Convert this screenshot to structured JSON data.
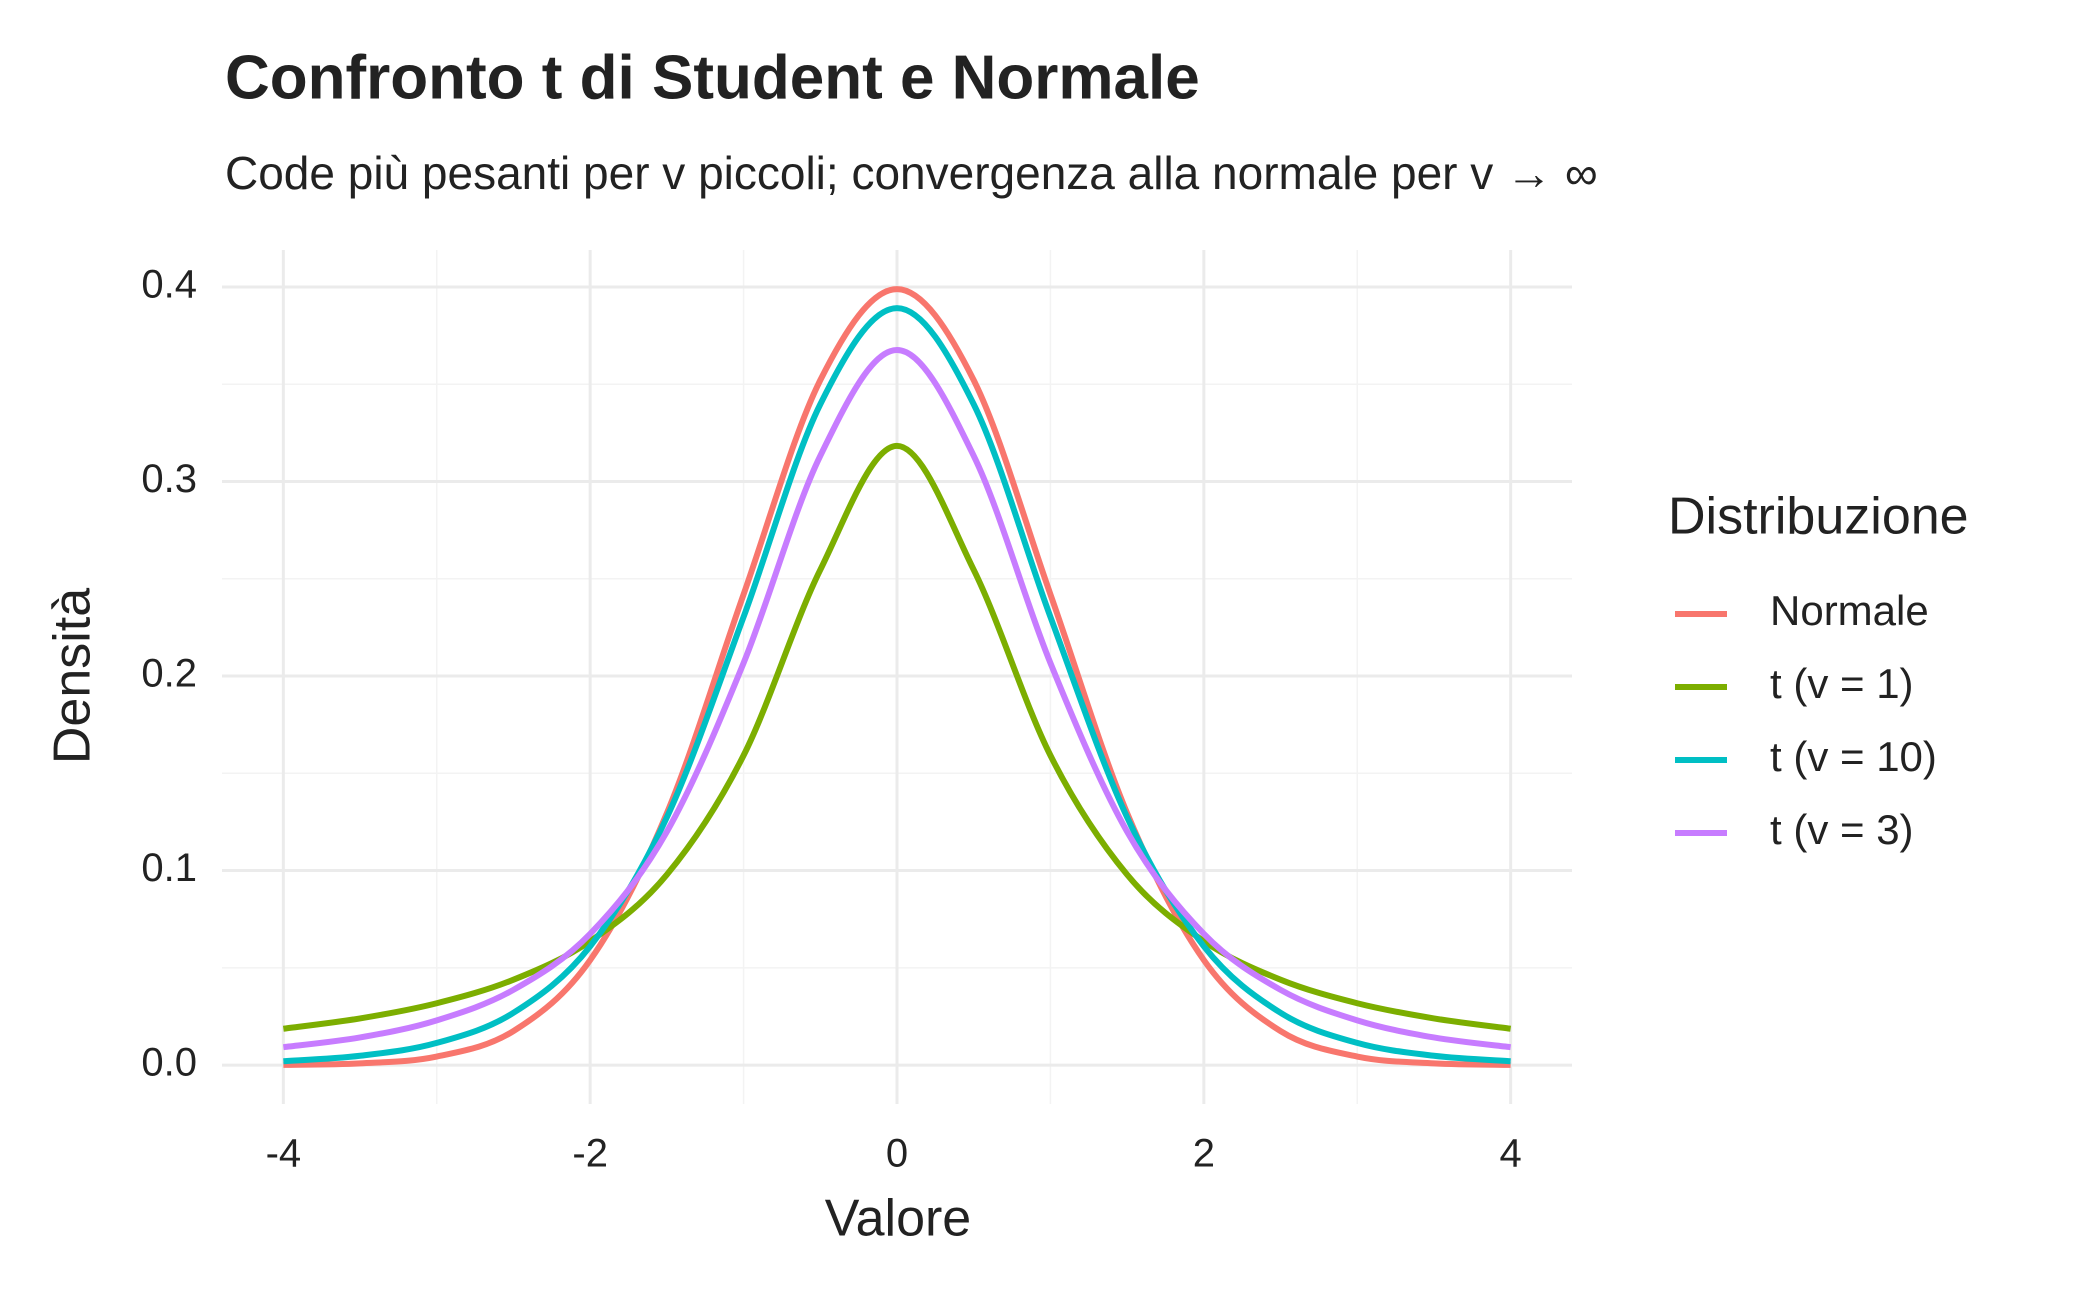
{
  "chart_data": {
    "type": "line",
    "title": "Confronto t di Student e Normale",
    "subtitle": "Code più pesanti per v piccoli; convergenza alla normale per v → ∞",
    "x_label": "Valore",
    "y_label": "Densità",
    "x": [
      -4,
      -3.5,
      -3,
      -2.5,
      -2,
      -1.5,
      -1,
      -0.5,
      0,
      0.5,
      1,
      1.5,
      2,
      2.5,
      3,
      3.5,
      4
    ],
    "series": [
      {
        "name": "Normale",
        "color": "#F8766D",
        "values": [
          0.0001,
          0.0009,
          0.0044,
          0.0175,
          0.054,
          0.1295,
          0.242,
          0.3521,
          0.3989,
          0.3521,
          0.242,
          0.1295,
          0.054,
          0.0175,
          0.0044,
          0.0009,
          0.0001
        ]
      },
      {
        "name": "t (v = 1)",
        "color": "#7CAE00",
        "values": [
          0.0187,
          0.024,
          0.0318,
          0.0439,
          0.0637,
          0.0979,
          0.1592,
          0.2546,
          0.3183,
          0.2546,
          0.1592,
          0.0979,
          0.0637,
          0.0439,
          0.0318,
          0.024,
          0.0187
        ]
      },
      {
        "name": "t (v = 10)",
        "color": "#00BFC4",
        "values": [
          0.002,
          0.0048,
          0.0114,
          0.0269,
          0.0611,
          0.1274,
          0.2304,
          0.3397,
          0.3891,
          0.3397,
          0.2304,
          0.1274,
          0.0611,
          0.0269,
          0.0114,
          0.0048,
          0.002
        ]
      },
      {
        "name": "t (v = 3)",
        "color": "#C77CFF",
        "values": [
          0.0092,
          0.0142,
          0.023,
          0.0387,
          0.0675,
          0.12,
          0.2067,
          0.3132,
          0.3676,
          0.3132,
          0.2067,
          0.12,
          0.0675,
          0.0387,
          0.023,
          0.0142,
          0.0092
        ]
      }
    ],
    "legend_title": "Distribuzione",
    "xlim": [
      -4.4,
      4.4
    ],
    "xticks": [
      -4,
      -2,
      0,
      2,
      4
    ],
    "ylim": [
      -0.02,
      0.419
    ],
    "yticks": [
      0.0,
      0.1,
      0.2,
      0.3,
      0.4
    ],
    "grid": true,
    "legend": "right"
  }
}
